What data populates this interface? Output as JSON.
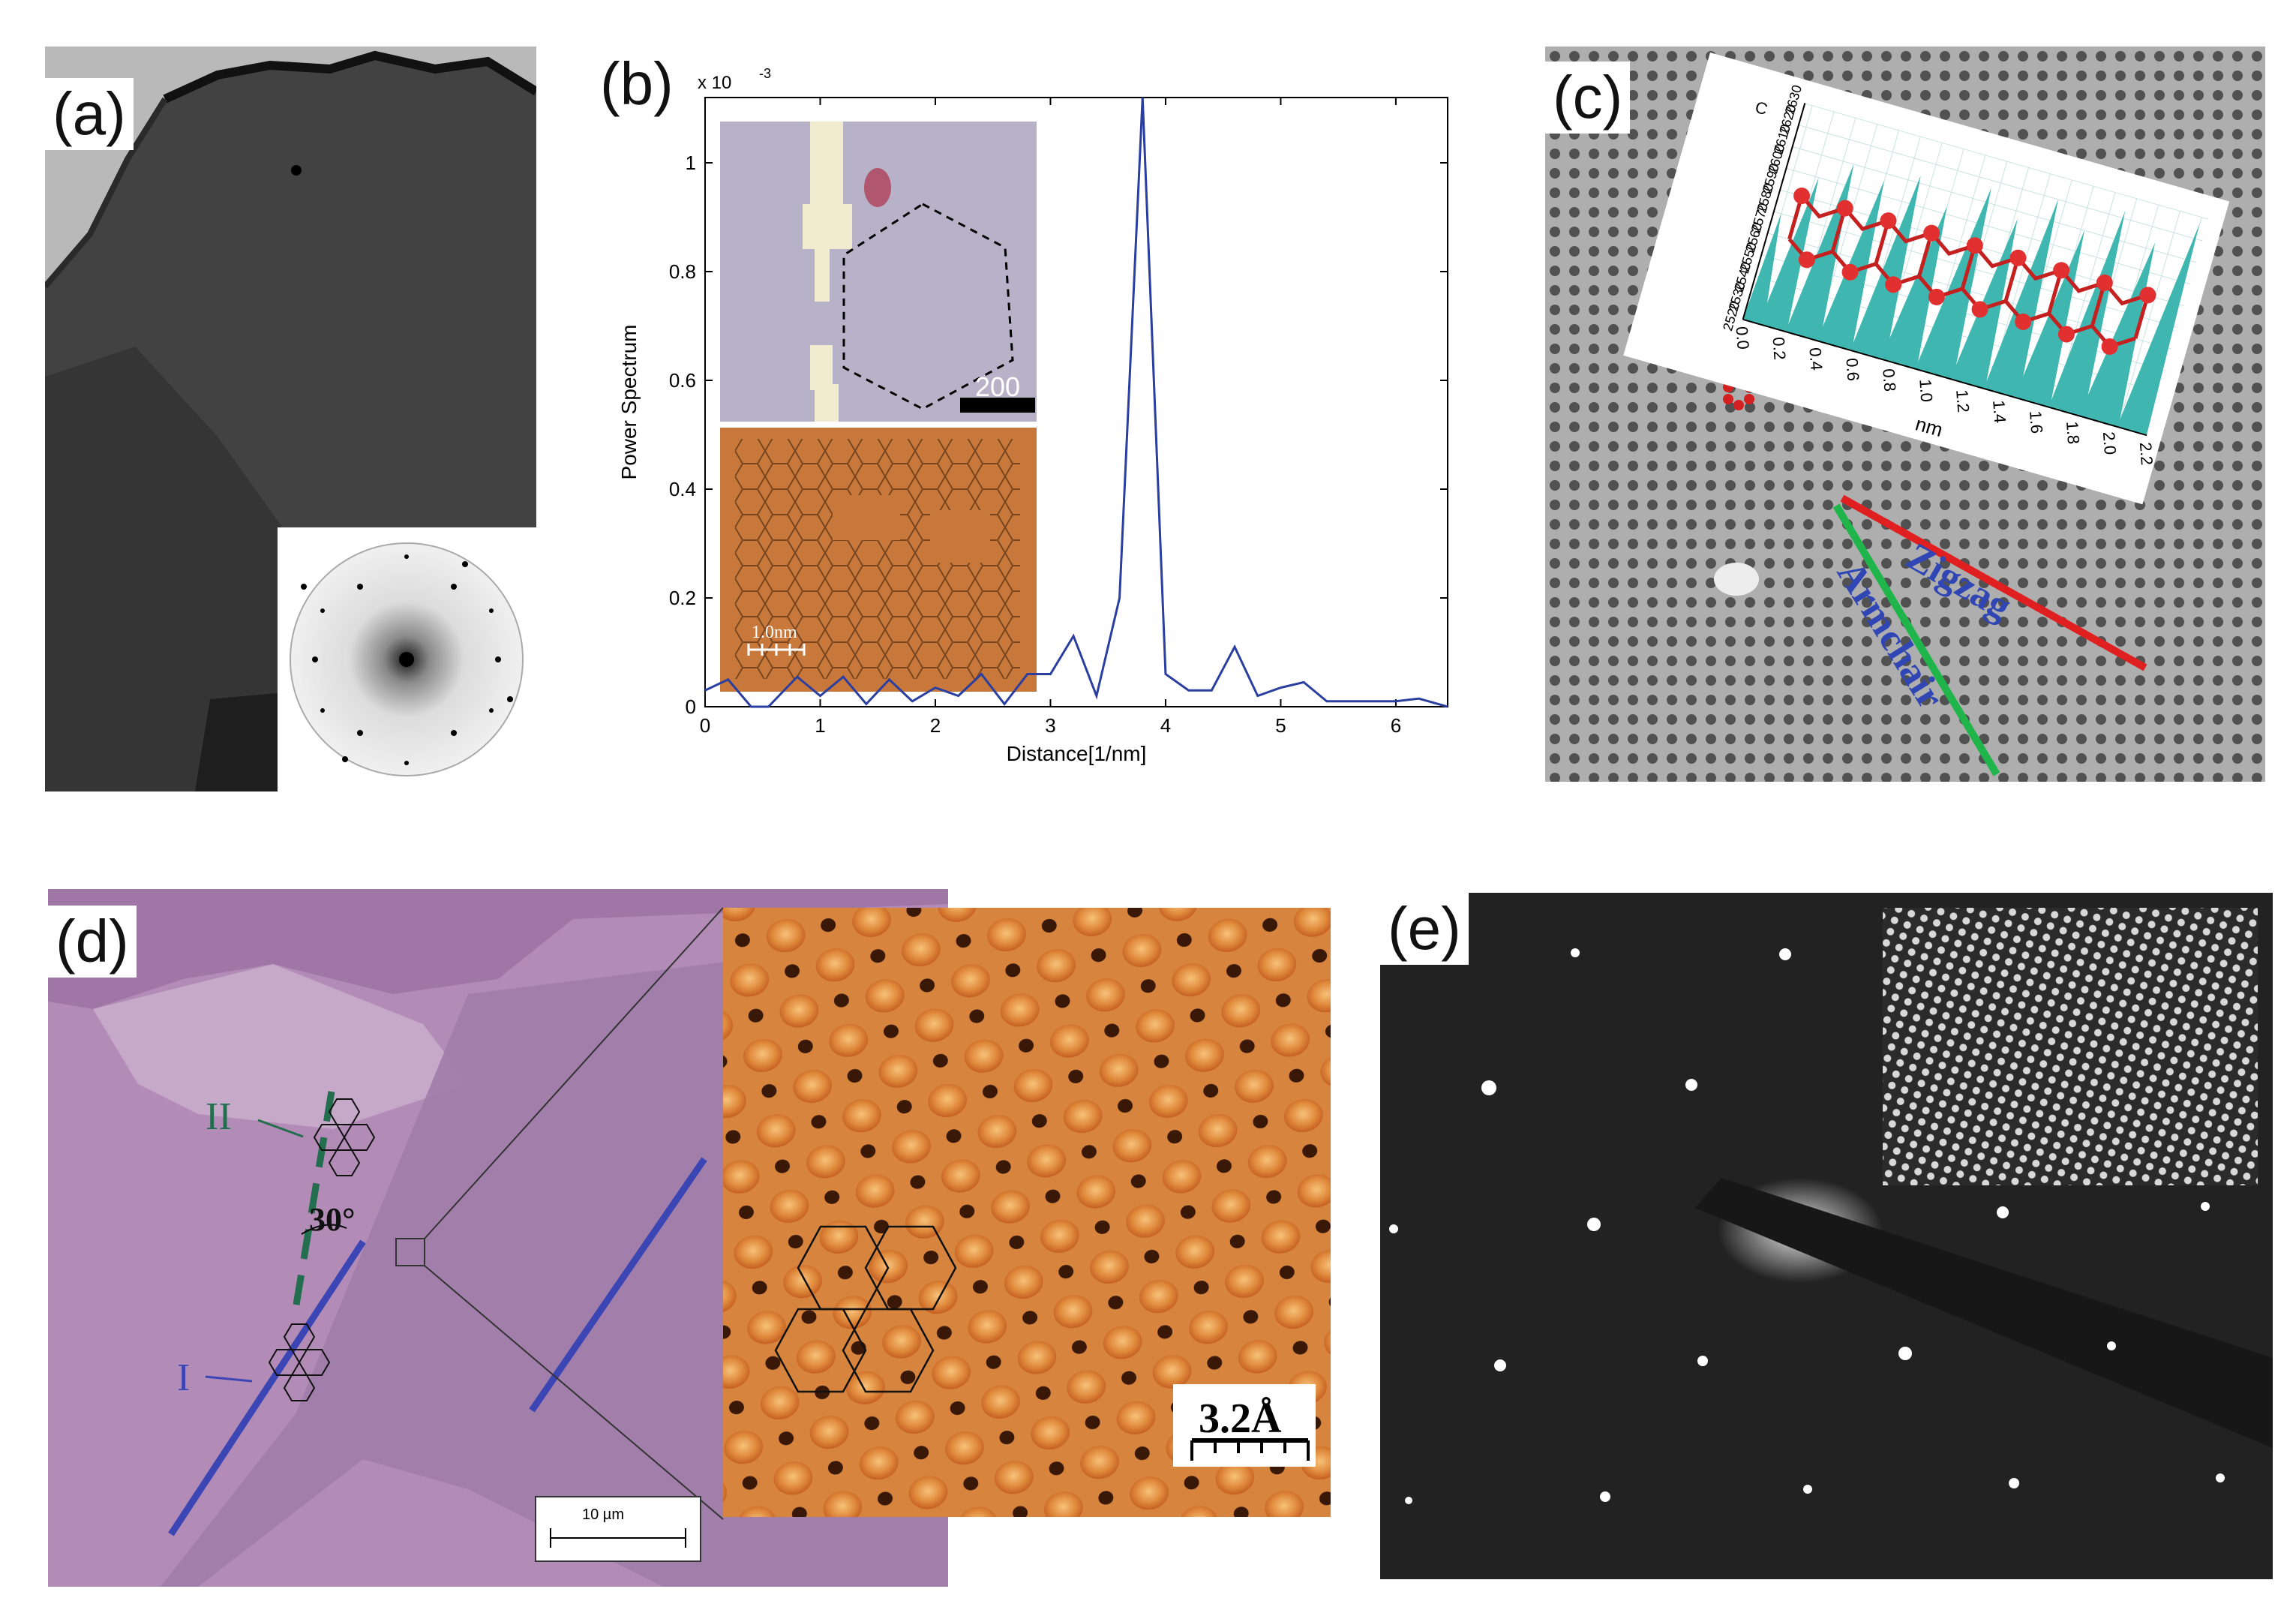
{
  "figure": {
    "panels": {
      "a": {
        "label": "(a)"
      },
      "b": {
        "label": "(b)",
        "inset_top_scale": "200",
        "inset_bottom_scale": "1.0nm"
      },
      "c": {
        "label": "(c)",
        "inset_x_label": "nm",
        "inset_x_ticks": [
          "0.0",
          "0.2",
          "0.4",
          "0.6",
          "0.8",
          "1.0",
          "1.2",
          "1.4",
          "1.6",
          "1.8",
          "2.0",
          "2.2"
        ],
        "inset_y_ticks": [
          "2520",
          "2530",
          "2540",
          "2550",
          "2560",
          "2570",
          "2580",
          "2590",
          "2600",
          "2610",
          "2620",
          "2630"
        ],
        "inset_y_label": "C",
        "zigzag_label": "Zigzag",
        "armchair_label": "Armchair"
      },
      "d": {
        "label": "(d)",
        "marker_II": "II",
        "marker_I": "I",
        "angle_label": "30°",
        "scalebar_label": "10 µm",
        "inset_scale_label": "3.2Å"
      },
      "e": {
        "label": "(e)"
      }
    }
  },
  "chart_data": {
    "type": "line",
    "xlabel": "Distance[1/nm]",
    "ylabel": "Power Spectrum",
    "y_multiplier": "x 10",
    "y_multiplier_exp": "-3",
    "xlim": [
      0,
      6.45
    ],
    "ylim": [
      0,
      1.12
    ],
    "xticks": [
      0,
      1,
      2,
      3,
      4,
      5,
      6
    ],
    "yticks": [
      0,
      0.2,
      0.4,
      0.6,
      0.8,
      1
    ],
    "series": [
      {
        "color": "#2b3fa0",
        "x": [
          0.0,
          0.2,
          0.4,
          0.55,
          0.8,
          1.0,
          1.2,
          1.4,
          1.6,
          1.8,
          2.0,
          2.2,
          2.4,
          2.6,
          2.8,
          3.0,
          3.2,
          3.4,
          3.6,
          3.8,
          4.0,
          4.2,
          4.4,
          4.6,
          4.8,
          5.0,
          5.2,
          5.4,
          5.6,
          5.8,
          6.0,
          6.2,
          6.45
        ],
        "y": [
          0.03,
          0.05,
          0.0,
          0.0,
          0.055,
          0.02,
          0.055,
          0.005,
          0.05,
          0.01,
          0.035,
          0.02,
          0.06,
          0.005,
          0.06,
          0.06,
          0.13,
          0.02,
          0.2,
          1.12,
          0.06,
          0.03,
          0.03,
          0.11,
          0.02,
          0.035,
          0.045,
          0.01,
          0.01,
          0.01,
          0.01,
          0.015,
          0.0
        ]
      }
    ]
  }
}
